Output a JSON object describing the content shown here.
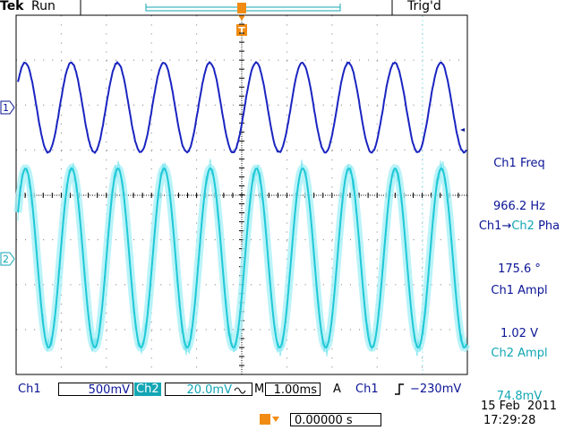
{
  "header": {
    "brand": "Tek",
    "status": "Run",
    "trigger_status": "Trig'd"
  },
  "channel_markers": [
    "1",
    "2"
  ],
  "measurements": [
    {
      "label": "Ch1 Freq",
      "value": "966.2 Hz"
    },
    {
      "label_parts": [
        "Ch1",
        "→",
        "Ch2",
        "Pha"
      ],
      "value": "175.6 °"
    },
    {
      "label": "Ch1 Ampl",
      "value": "1.02 V"
    },
    {
      "label": "Ch2 Ampl",
      "value": "74.8mV"
    }
  ],
  "status_bar": {
    "ch1": {
      "name": "Ch1",
      "scale": "500mV"
    },
    "ch2": {
      "name": "Ch2",
      "scale": "20.0mV"
    },
    "timebase": {
      "prefix": "M",
      "value": "1.00ms"
    },
    "trigger": {
      "mode": "A",
      "source": "Ch1",
      "level": "−230mV"
    },
    "trigger_position": "0.00000 s",
    "date": "15 Feb  2011",
    "time": "17:29:28"
  }
}
